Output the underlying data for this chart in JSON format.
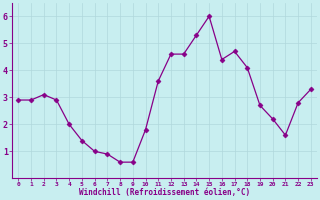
{
  "x": [
    0,
    1,
    2,
    3,
    4,
    5,
    6,
    7,
    8,
    9,
    10,
    11,
    12,
    13,
    14,
    15,
    16,
    17,
    18,
    19,
    20,
    21,
    22,
    23
  ],
  "y": [
    2.9,
    2.9,
    3.1,
    2.9,
    2.0,
    1.4,
    1.0,
    0.9,
    0.6,
    0.6,
    1.8,
    3.6,
    4.6,
    4.6,
    5.3,
    6.0,
    4.4,
    4.7,
    4.1,
    2.7,
    2.2,
    1.6,
    2.8,
    3.3
  ],
  "line_color": "#880088",
  "marker": "D",
  "marker_size": 2.5,
  "bg_color": "#c8eef0",
  "grid_color": "#b0d8dc",
  "xlabel": "Windchill (Refroidissement éolien,°C)",
  "xlabel_color": "#880088",
  "tick_color": "#880088",
  "spine_color": "#880088",
  "ylim": [
    0,
    6.5
  ],
  "xlim": [
    -0.5,
    23.5
  ],
  "yticks": [
    1,
    2,
    3,
    4,
    5,
    6
  ],
  "xticks": [
    0,
    1,
    2,
    3,
    4,
    5,
    6,
    7,
    8,
    9,
    10,
    11,
    12,
    13,
    14,
    15,
    16,
    17,
    18,
    19,
    20,
    21,
    22,
    23
  ]
}
